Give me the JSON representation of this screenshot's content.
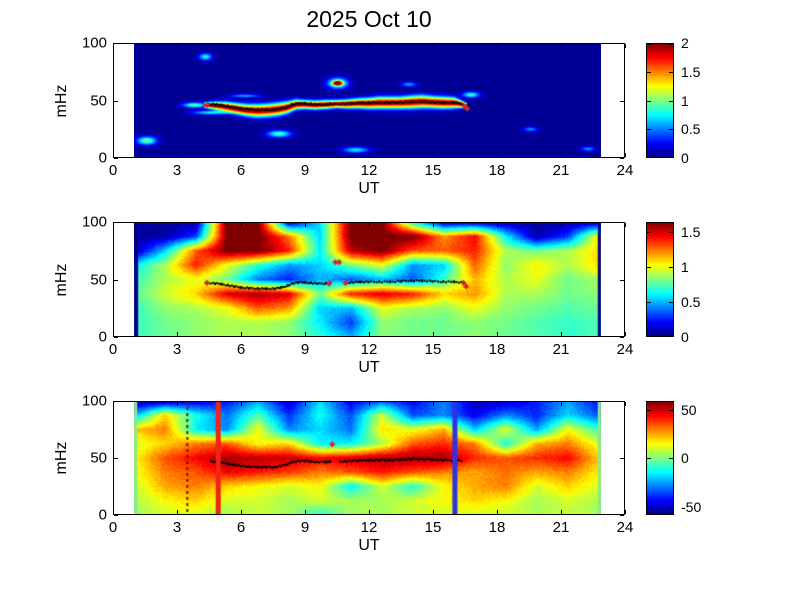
{
  "title": "2025 Oct 10",
  "background": "#ffffff",
  "chart_data": [
    {
      "type": "heatmap",
      "panel": "top",
      "xlabel": "UT",
      "ylabel": "mHz",
      "xlim": [
        0,
        24
      ],
      "ylim": [
        0,
        100
      ],
      "xticks": [
        0,
        3,
        6,
        9,
        12,
        15,
        18,
        21,
        24
      ],
      "yticks": [
        0,
        50,
        100
      ],
      "data_x_extent": [
        1,
        22.9
      ],
      "colorbar": {
        "min": 0,
        "max": 2,
        "ticks": [
          0,
          0.5,
          1,
          1.5,
          2
        ]
      },
      "field": {
        "kind": "band",
        "background": 0.04,
        "band_peak": 1.95,
        "band_points": [
          [
            4.3,
            46,
            2.5
          ],
          [
            4.8,
            45.5,
            4
          ],
          [
            5.3,
            44.5,
            5
          ],
          [
            5.8,
            43,
            5.5
          ],
          [
            6.3,
            41.5,
            6
          ],
          [
            6.8,
            41,
            6.5
          ],
          [
            7.3,
            41.5,
            6.5
          ],
          [
            7.8,
            42.5,
            6.5
          ],
          [
            8.2,
            44,
            6
          ],
          [
            8.6,
            46.5,
            5
          ],
          [
            9,
            46.5,
            4.5
          ],
          [
            9.5,
            46,
            4.5
          ],
          [
            10,
            46.5,
            4.5
          ],
          [
            10.5,
            47,
            4
          ],
          [
            11,
            47,
            4.5
          ],
          [
            11.5,
            47.5,
            5
          ],
          [
            12,
            47.5,
            5.5
          ],
          [
            12.5,
            48,
            6
          ],
          [
            13,
            48,
            6
          ],
          [
            13.5,
            48,
            6
          ],
          [
            14,
            48.5,
            6.5
          ],
          [
            14.5,
            49,
            6.5
          ],
          [
            15,
            48.5,
            6
          ],
          [
            15.5,
            48,
            6
          ],
          [
            16,
            48,
            5.5
          ],
          [
            16.3,
            47,
            4
          ],
          [
            16.6,
            45.5,
            2.5
          ]
        ],
        "blobs": [
          [
            1.6,
            15,
            0.45,
            3.5,
            0.95
          ],
          [
            3.85,
            46,
            0.55,
            2.2,
            0.9
          ],
          [
            4.6,
            39.5,
            0.85,
            1.8,
            0.7
          ],
          [
            6.2,
            54,
            0.7,
            1.5,
            0.55
          ],
          [
            4.35,
            88,
            0.3,
            3,
            0.75
          ],
          [
            7.8,
            21,
            0.55,
            3,
            0.85
          ],
          [
            10.55,
            65,
            0.45,
            4.5,
            1.05
          ],
          [
            10.55,
            65,
            0.2,
            1.8,
            1.9
          ],
          [
            11.4,
            7,
            0.6,
            2.5,
            0.7
          ],
          [
            13.9,
            64,
            0.35,
            2,
            0.55
          ],
          [
            16.8,
            55,
            0.4,
            2.5,
            0.8
          ],
          [
            19.6,
            25,
            0.35,
            2,
            0.5
          ],
          [
            22.3,
            8,
            0.35,
            2,
            0.5
          ]
        ]
      },
      "trace": {
        "color": "#000000",
        "gaps": [],
        "points": [
          [
            4.5,
            47
          ],
          [
            4.8,
            46.5
          ],
          [
            5.1,
            46
          ],
          [
            5.4,
            45
          ],
          [
            5.7,
            44
          ],
          [
            6,
            43
          ],
          [
            6.4,
            42.5
          ],
          [
            6.8,
            42
          ],
          [
            7.2,
            42
          ],
          [
            7.6,
            42
          ],
          [
            7.9,
            43
          ],
          [
            8.2,
            44.5
          ],
          [
            8.4,
            46.5
          ],
          [
            8.7,
            47.5
          ],
          [
            9,
            47.5
          ],
          [
            9.3,
            47
          ],
          [
            9.6,
            46.5
          ],
          [
            10,
            46.5
          ],
          [
            10.2,
            47
          ],
          [
            10.9,
            47
          ],
          [
            11.2,
            47.5
          ],
          [
            11.6,
            48
          ],
          [
            12,
            48
          ],
          [
            12.5,
            48
          ],
          [
            13,
            48
          ],
          [
            13.5,
            48.5
          ],
          [
            14,
            49
          ],
          [
            14.5,
            49
          ],
          [
            15,
            48.5
          ],
          [
            15.5,
            48
          ],
          [
            16,
            48
          ],
          [
            16.35,
            47.5
          ]
        ]
      },
      "marker_color": "#cc2d23",
      "markers": [
        [
          4.42,
          46
        ],
        [
          16.5,
          45
        ],
        [
          16.62,
          43
        ]
      ],
      "vlines": []
    },
    {
      "type": "heatmap",
      "panel": "middle",
      "xlabel": "UT",
      "ylabel": "mHz",
      "xlim": [
        0,
        24
      ],
      "ylim": [
        0,
        100
      ],
      "xticks": [
        0,
        3,
        6,
        9,
        12,
        15,
        18,
        21,
        24
      ],
      "yticks": [
        0,
        50,
        100
      ],
      "data_x_extent": [
        1,
        22.9
      ],
      "colorbar": {
        "min": 0,
        "max": 1.65,
        "ticks": [
          0,
          0.5,
          1,
          1.5
        ]
      },
      "field": {
        "kind": "grid",
        "xs": [
          1,
          2.45,
          3.91,
          5.36,
          6.81,
          8.27,
          9.72,
          11.17,
          12.63,
          14.08,
          15.53,
          16.99,
          18.44,
          19.89,
          21.35,
          22.9
        ],
        "ys": [
          100,
          87.5,
          75,
          62.5,
          50,
          37.5,
          25,
          12.5,
          0
        ],
        "values": [
          [
            0.05,
            0.05,
            0.05,
            1.68,
            1.68,
            0.05,
            0.55,
            1.68,
            1.68,
            0.6,
            0.05,
            0.05,
            0.05,
            0.05,
            0.05,
            0.05
          ],
          [
            0.05,
            0.05,
            0.3,
            1.68,
            1.68,
            1.25,
            0.55,
            1.68,
            1.68,
            1.68,
            1.2,
            1.45,
            0.6,
            0.05,
            0.3,
            1.15
          ],
          [
            0.05,
            0.55,
            1.3,
            1.68,
            1.68,
            1.4,
            0.6,
            1.55,
            1.68,
            1.3,
            1.3,
            1.4,
            0.9,
            0.8,
            0.9,
            1.1
          ],
          [
            0.6,
            0.9,
            1.4,
            1.0,
            0.7,
            0.45,
            0.55,
            0.8,
            1.0,
            0.45,
            0.55,
            1.3,
            0.85,
            1.05,
            0.9,
            1.1
          ],
          [
            0.7,
            0.9,
            1.0,
            0.8,
            0.4,
            0.25,
            0.5,
            0.35,
            0.5,
            0.35,
            0.7,
            1.15,
            0.9,
            1.0,
            0.8,
            0.9
          ],
          [
            0.75,
            0.95,
            1.1,
            1.5,
            1.6,
            1.5,
            0.8,
            1.4,
            1.5,
            1.4,
            1.1,
            1.2,
            0.9,
            0.9,
            0.8,
            0.85
          ],
          [
            0.7,
            0.85,
            0.9,
            1.0,
            1.3,
            1.2,
            0.55,
            0.5,
            1.0,
            0.9,
            0.85,
            1.0,
            0.85,
            0.8,
            0.75,
            0.8
          ],
          [
            0.7,
            0.8,
            0.85,
            0.9,
            0.9,
            0.85,
            0.6,
            0.3,
            0.85,
            0.8,
            0.8,
            0.85,
            0.8,
            0.75,
            0.7,
            0.75
          ],
          [
            0.7,
            0.8,
            0.85,
            0.9,
            0.9,
            0.85,
            0.7,
            0.5,
            0.85,
            0.8,
            0.8,
            0.85,
            0.8,
            0.75,
            0.7,
            0.75
          ]
        ]
      },
      "trace": {
        "color": "#000000",
        "gaps": [
          [
            10.25,
            10.85
          ]
        ],
        "points": [
          [
            4.5,
            47
          ],
          [
            4.8,
            46.5
          ],
          [
            5.1,
            46
          ],
          [
            5.4,
            45
          ],
          [
            5.7,
            44
          ],
          [
            6,
            43
          ],
          [
            6.4,
            42.5
          ],
          [
            6.8,
            42
          ],
          [
            7.2,
            42
          ],
          [
            7.6,
            42
          ],
          [
            7.9,
            43
          ],
          [
            8.2,
            44.5
          ],
          [
            8.4,
            46.5
          ],
          [
            8.7,
            47.5
          ],
          [
            9,
            47.5
          ],
          [
            9.3,
            47
          ],
          [
            9.6,
            46.5
          ],
          [
            10,
            46.5
          ],
          [
            10.2,
            47
          ],
          [
            10.9,
            47
          ],
          [
            11.2,
            47.5
          ],
          [
            11.6,
            48
          ],
          [
            12,
            48
          ],
          [
            12.5,
            48
          ],
          [
            13,
            48
          ],
          [
            13.5,
            48.5
          ],
          [
            14,
            49
          ],
          [
            14.5,
            49
          ],
          [
            15,
            48.5
          ],
          [
            15.5,
            48
          ],
          [
            16,
            48
          ],
          [
            16.35,
            47.5
          ]
        ]
      },
      "marker_color": "#cc2d23",
      "markers": [
        [
          4.42,
          47
        ],
        [
          10.15,
          46.5
        ],
        [
          10.45,
          65
        ],
        [
          10.62,
          65
        ],
        [
          10.92,
          47
        ],
        [
          16.45,
          47
        ],
        [
          16.58,
          44
        ]
      ],
      "vlines": [
        {
          "x": 1.1,
          "color": "#000085",
          "width": 4
        },
        {
          "x": 22.82,
          "color": "#000085",
          "width": 3
        }
      ]
    },
    {
      "type": "heatmap",
      "panel": "bottom",
      "xlabel": "UT",
      "ylabel": "mHz",
      "xlim": [
        0,
        24
      ],
      "ylim": [
        0,
        100
      ],
      "xticks": [
        0,
        3,
        6,
        9,
        12,
        15,
        18,
        21,
        24
      ],
      "yticks": [
        0,
        50,
        100
      ],
      "data_x_extent": [
        1,
        22.9
      ],
      "colorbar": {
        "min": -58,
        "max": 59,
        "ticks": [
          -50,
          0,
          50
        ]
      },
      "field": {
        "kind": "grid",
        "xs": [
          1,
          2.45,
          3.91,
          5.36,
          6.81,
          8.27,
          9.72,
          11.17,
          12.63,
          14.08,
          15.53,
          16.99,
          18.44,
          19.89,
          21.35,
          22.9
        ],
        "ys": [
          100,
          87.5,
          75,
          62.5,
          50,
          37.5,
          25,
          12.5,
          0
        ],
        "values": [
          [
            -55,
            -55,
            -48,
            -42,
            -25,
            -50,
            -18,
            -45,
            -35,
            -45,
            -28,
            -52,
            -50,
            -40,
            -25,
            -45
          ],
          [
            -25,
            20,
            -12,
            -30,
            -5,
            -38,
            -12,
            -35,
            10,
            -35,
            -28,
            -45,
            -28,
            -40,
            -18,
            -35
          ],
          [
            22,
            30,
            -15,
            -28,
            15,
            -28,
            -18,
            -30,
            18,
            12,
            25,
            -20,
            12,
            -25,
            15,
            -10
          ],
          [
            10,
            20,
            30,
            35,
            15,
            20,
            -15,
            -15,
            5,
            35,
            40,
            30,
            -12,
            25,
            30,
            10
          ],
          [
            15,
            35,
            45,
            55,
            52,
            50,
            45,
            50,
            55,
            55,
            55,
            40,
            35,
            40,
            45,
            20
          ],
          [
            12,
            30,
            35,
            45,
            42,
            38,
            30,
            35,
            42,
            35,
            30,
            25,
            32,
            25,
            30,
            15
          ],
          [
            8,
            25,
            30,
            20,
            15,
            10,
            15,
            -15,
            10,
            -10,
            15,
            25,
            30,
            10,
            20,
            10
          ],
          [
            5,
            15,
            20,
            10,
            10,
            5,
            10,
            5,
            5,
            10,
            15,
            20,
            15,
            5,
            10,
            5
          ],
          [
            3,
            10,
            10,
            5,
            8,
            5,
            -10,
            5,
            5,
            8,
            10,
            10,
            8,
            5,
            8,
            5
          ]
        ]
      },
      "trace": {
        "color": "#000000",
        "gaps": [
          [
            10.3,
            10.6
          ]
        ],
        "points": [
          [
            4.6,
            47.5
          ],
          [
            4.8,
            46.5
          ],
          [
            5.1,
            46
          ],
          [
            5.4,
            45
          ],
          [
            5.7,
            44
          ],
          [
            6,
            43
          ],
          [
            6.4,
            42.5
          ],
          [
            6.8,
            42
          ],
          [
            7.2,
            42
          ],
          [
            7.6,
            42
          ],
          [
            7.9,
            43
          ],
          [
            8.2,
            44.5
          ],
          [
            8.4,
            46.5
          ],
          [
            8.7,
            47.5
          ],
          [
            9,
            47.5
          ],
          [
            9.3,
            47
          ],
          [
            9.6,
            46.5
          ],
          [
            10,
            46.5
          ],
          [
            10.2,
            47
          ],
          [
            10.9,
            47
          ],
          [
            11.2,
            47.5
          ],
          [
            11.6,
            48
          ],
          [
            12,
            48
          ],
          [
            12.5,
            48
          ],
          [
            13,
            48
          ],
          [
            13.5,
            48.5
          ],
          [
            14,
            49
          ],
          [
            14.5,
            49
          ],
          [
            15,
            48.5
          ],
          [
            15.5,
            48
          ],
          [
            16,
            48
          ],
          [
            16.35,
            47.5
          ]
        ]
      },
      "marker_color": "#cc2d23",
      "markers": [
        [
          10.3,
          62
        ]
      ],
      "vlines": [
        {
          "x": 1.08,
          "color": "#8ce88e",
          "width": 3
        },
        {
          "x": 3.5,
          "color": "#7a150c",
          "width": 2,
          "style": "dotted"
        },
        {
          "x": 4.95,
          "color": "#ee2417",
          "width": 5
        },
        {
          "x": 16.05,
          "color": "#2a35e0",
          "width": 5
        },
        {
          "x": 22.82,
          "color": "#8ce88e",
          "width": 3
        }
      ]
    }
  ]
}
